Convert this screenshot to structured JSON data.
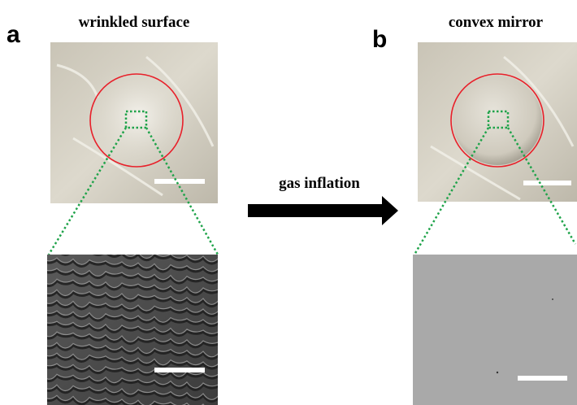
{
  "panel_a": {
    "label": "a",
    "title": "wrinkled surface"
  },
  "panel_b": {
    "label": "b",
    "title": "convex mirror"
  },
  "arrow": {
    "label": "gas inflation"
  }
}
